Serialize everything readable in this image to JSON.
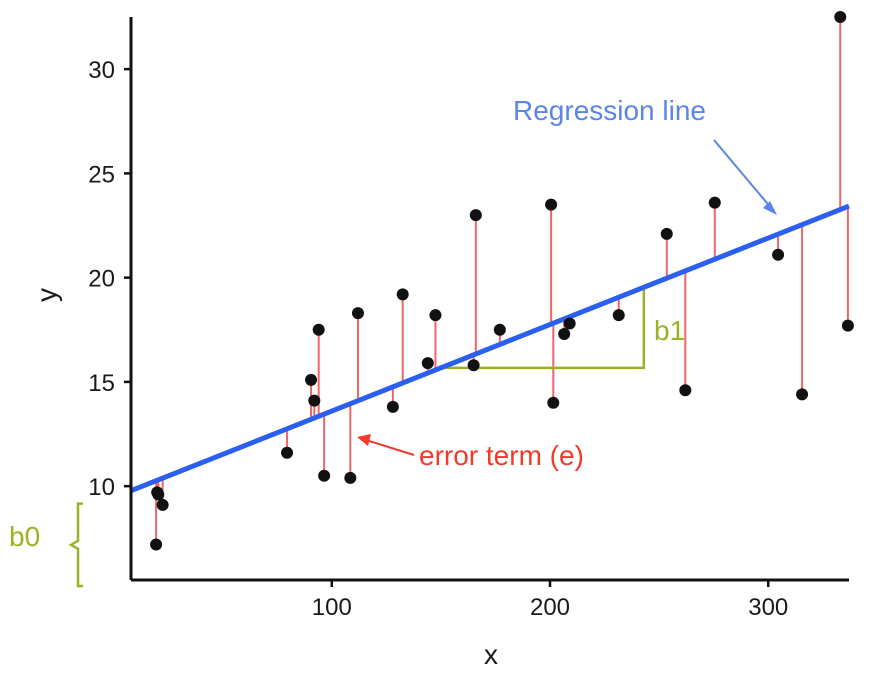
{
  "chart_data": {
    "type": "scatter",
    "xlabel": "x",
    "ylabel": "y",
    "xlim": [
      8,
      337
    ],
    "ylim": [
      5.5,
      32.5
    ],
    "x_ticks": [
      100,
      200,
      300
    ],
    "y_ticks": [
      10,
      15,
      20,
      25,
      30
    ],
    "grid": false,
    "regression_line": {
      "intercept": 9.45,
      "slope": 0.0415
    },
    "points": [
      {
        "x": 19.5,
        "y": 7.2
      },
      {
        "x": 20,
        "y": 9.7
      },
      {
        "x": 20.5,
        "y": 9.6
      },
      {
        "x": 22.5,
        "y": 9.1
      },
      {
        "x": 79.5,
        "y": 11.6
      },
      {
        "x": 90.5,
        "y": 15.1
      },
      {
        "x": 92,
        "y": 14.1
      },
      {
        "x": 94,
        "y": 17.5
      },
      {
        "x": 96.5,
        "y": 10.5
      },
      {
        "x": 108.5,
        "y": 10.4
      },
      {
        "x": 112,
        "y": 18.3
      },
      {
        "x": 128,
        "y": 13.8
      },
      {
        "x": 132.5,
        "y": 19.2
      },
      {
        "x": 144,
        "y": 15.9
      },
      {
        "x": 147.5,
        "y": 18.2
      },
      {
        "x": 165,
        "y": 15.8
      },
      {
        "x": 166,
        "y": 23
      },
      {
        "x": 177,
        "y": 17.5
      },
      {
        "x": 200.5,
        "y": 23.5
      },
      {
        "x": 201.5,
        "y": 14
      },
      {
        "x": 206.5,
        "y": 17.3
      },
      {
        "x": 209,
        "y": 17.8
      },
      {
        "x": 231.5,
        "y": 18.2
      },
      {
        "x": 253.5,
        "y": 22.1
      },
      {
        "x": 262,
        "y": 14.6
      },
      {
        "x": 275.5,
        "y": 23.6
      },
      {
        "x": 304.5,
        "y": 21.1
      },
      {
        "x": 315.5,
        "y": 14.4
      },
      {
        "x": 333,
        "y": 32.5
      },
      {
        "x": 336.5,
        "y": 17.7
      }
    ],
    "slope_triangle": {
      "x_start": 150,
      "x_end": 243
    },
    "intercept_bracket": {
      "y_start": 5.5,
      "y_end": 9.45
    }
  },
  "annotations": {
    "regression_label": "Regression line",
    "error_label": "error term (e)",
    "slope_label": "b1",
    "intercept_label": "b0"
  },
  "colors": {
    "regression": "#2b5ff0",
    "regression_label": "#5b86e5",
    "residual": "#f06565",
    "error_label": "#f23a2a",
    "coef": "#9ab325",
    "point": "#111111",
    "axis": "#111111"
  }
}
